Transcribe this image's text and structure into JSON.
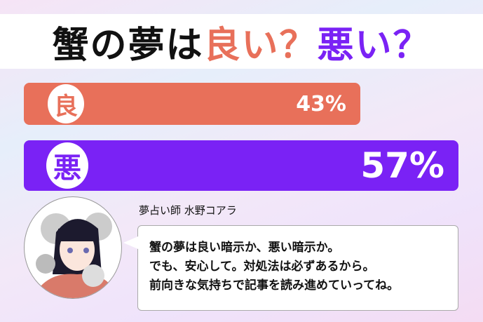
{
  "title": {
    "subject": "蟹の夢は",
    "good": "良い？",
    "bad": "悪い？"
  },
  "results": [
    {
      "label": "良",
      "percent": 43,
      "display": "43%",
      "color": "#e8705a"
    },
    {
      "label": "悪",
      "percent": 57,
      "display": "57%",
      "color": "#7a22f5"
    }
  ],
  "advisor": {
    "name": "夢占い師 水野コアラ"
  },
  "message": [
    "蟹の夢は良い暗示か、悪い暗示か。",
    "でも、安心して。対処法は必ずあるから。",
    "前向きな気持ちで記事を読み進めていってね。"
  ]
}
